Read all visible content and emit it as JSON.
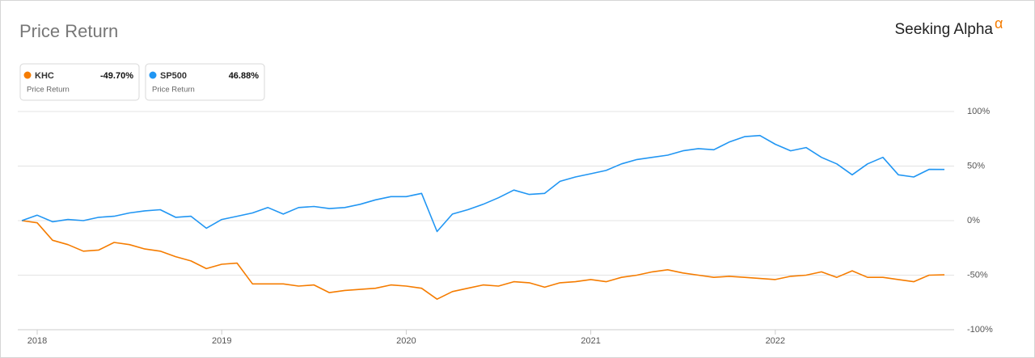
{
  "chart_data": {
    "type": "line",
    "title": "Price Return",
    "brand": "Seeking Alpha",
    "brand_mark": "α",
    "categories": [
      null,
      "2018",
      null,
      null,
      null,
      null,
      null,
      null,
      null,
      null,
      null,
      null,
      null,
      "2019",
      null,
      null,
      null,
      null,
      null,
      null,
      null,
      null,
      null,
      null,
      null,
      "2020",
      null,
      null,
      null,
      null,
      null,
      null,
      null,
      null,
      null,
      null,
      null,
      "2021",
      null,
      null,
      null,
      null,
      null,
      null,
      null,
      null,
      null,
      null,
      null,
      "2022",
      null,
      null,
      null,
      null,
      null,
      null,
      null,
      null,
      null,
      null,
      null
    ],
    "series": [
      {
        "name": "KHC",
        "color": "#f57c00",
        "metric": "Price Return",
        "value_label": "-49.70%",
        "values": [
          0,
          -2,
          -18,
          -22,
          -28,
          -27,
          -20,
          -22,
          -26,
          -28,
          -33,
          -37,
          -44,
          -40,
          -39,
          -58,
          -58,
          -58,
          -60,
          -59,
          -66,
          -64,
          -63,
          -62,
          -59,
          -60,
          -62,
          -72,
          -65,
          -62,
          -59,
          -60,
          -56,
          -57,
          -61,
          -57,
          -56,
          -54,
          -56,
          -52,
          -50,
          -47,
          -45,
          -48,
          -50,
          -52,
          -51,
          -52,
          -53,
          -54,
          -51,
          -50,
          -47,
          -52,
          -46,
          -52,
          -52,
          -54,
          -56,
          -50,
          -49.7
        ]
      },
      {
        "name": "SP500",
        "color": "#2196f3",
        "metric": "Price Return",
        "value_label": "46.88%",
        "values": [
          0,
          5,
          -1,
          1,
          0,
          3,
          4,
          7,
          9,
          10,
          3,
          4,
          -7,
          1,
          4,
          7,
          12,
          6,
          12,
          13,
          11,
          12,
          15,
          19,
          22,
          22,
          25,
          -10,
          6,
          10,
          15,
          21,
          28,
          24,
          25,
          36,
          40,
          43,
          46,
          52,
          56,
          58,
          60,
          64,
          66,
          65,
          72,
          77,
          78,
          70,
          64,
          67,
          58,
          52,
          42,
          52,
          58,
          42,
          40,
          47,
          46.88
        ]
      }
    ],
    "ylim": [
      -100,
      100
    ],
    "yticks": [
      {
        "value": 100,
        "label": "100%"
      },
      {
        "value": 50,
        "label": "50%"
      },
      {
        "value": 0,
        "label": "0%"
      },
      {
        "value": -50,
        "label": "-50%"
      },
      {
        "value": -100,
        "label": "-100%"
      }
    ],
    "grid": true
  }
}
